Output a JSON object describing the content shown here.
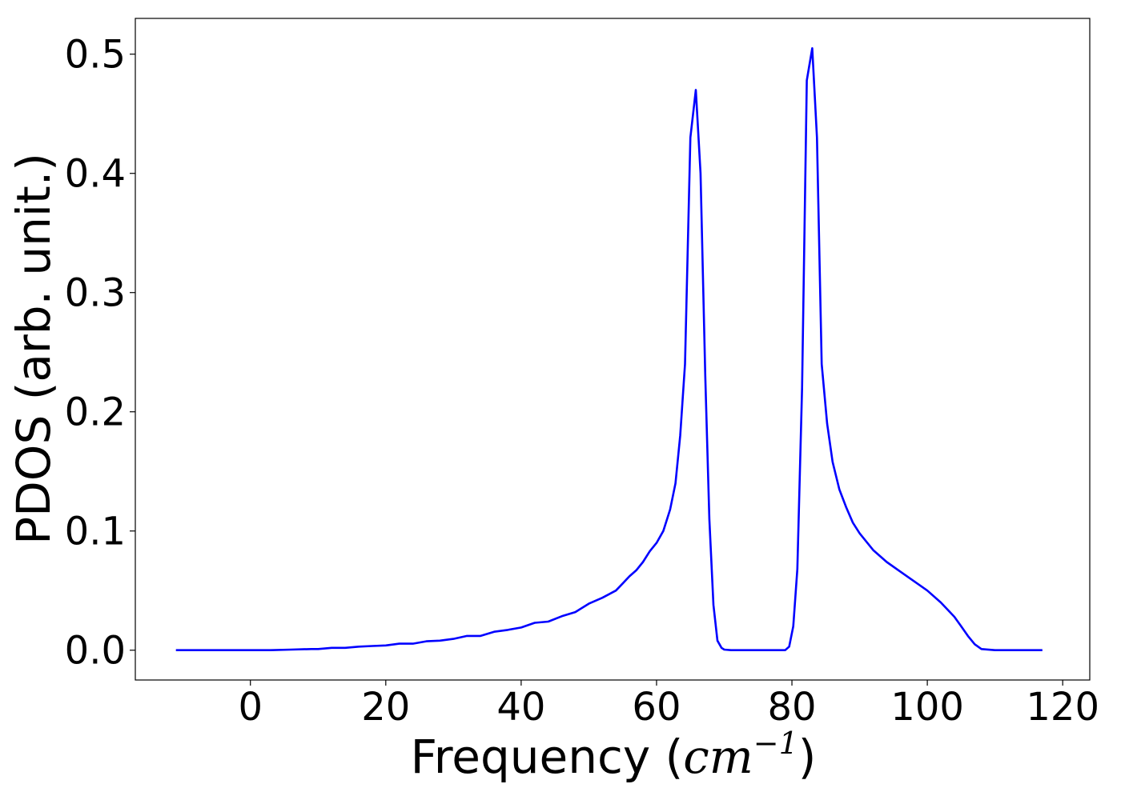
{
  "chart_data": {
    "type": "line",
    "title": "",
    "xlabel": "Frequency",
    "xlabel_math": "cm",
    "xlabel_exponent": "−1",
    "ylabel": "PDOS (arb. unit.)",
    "xlim": [
      -17,
      124
    ],
    "ylim": [
      -0.025,
      0.53
    ],
    "xticks": [
      0,
      20,
      40,
      60,
      80,
      100,
      120
    ],
    "xtick_labels": [
      "0",
      "20",
      "40",
      "60",
      "80",
      "100",
      "120"
    ],
    "yticks": [
      0.0,
      0.1,
      0.2,
      0.3,
      0.4,
      0.5
    ],
    "ytick_labels": [
      "0.0",
      "0.1",
      "0.2",
      "0.3",
      "0.4",
      "0.5"
    ],
    "grid": false,
    "legend": "none",
    "series": [
      {
        "color": "#0000ff",
        "x": [
          -11,
          -5,
          0,
          3,
          6,
          9,
          10,
          12,
          14,
          16,
          18,
          20,
          22,
          24,
          26,
          28,
          30,
          32,
          34,
          36,
          38,
          40,
          42,
          44,
          46,
          48,
          50,
          52,
          54,
          55,
          56,
          57,
          58,
          59,
          60,
          61,
          62,
          62.8,
          63.5,
          64.2,
          65,
          65.8,
          66.5,
          67.2,
          67.8,
          68.4,
          69,
          69.6,
          70,
          71,
          73,
          75,
          77,
          79,
          79.6,
          80.2,
          80.8,
          81.5,
          82.2,
          83,
          83.7,
          84.4,
          85.2,
          86,
          87,
          88,
          89,
          90,
          92,
          94,
          96,
          98,
          100,
          102,
          104,
          105,
          106,
          107,
          108,
          110,
          113,
          117
        ],
        "y": [
          0.0,
          0.0,
          0.0,
          0.0,
          0.0005,
          0.001,
          0.001,
          0.002,
          0.002,
          0.003,
          0.0035,
          0.004,
          0.0055,
          0.0055,
          0.0075,
          0.008,
          0.0095,
          0.012,
          0.012,
          0.0155,
          0.017,
          0.019,
          0.023,
          0.024,
          0.0285,
          0.032,
          0.039,
          0.044,
          0.05,
          0.056,
          0.062,
          0.067,
          0.074,
          0.083,
          0.09,
          0.1,
          0.118,
          0.14,
          0.18,
          0.24,
          0.43,
          0.47,
          0.4,
          0.23,
          0.11,
          0.038,
          0.008,
          0.002,
          0.0005,
          0.0,
          0.0,
          0.0,
          0.0,
          0.0,
          0.003,
          0.02,
          0.068,
          0.22,
          0.478,
          0.505,
          0.43,
          0.24,
          0.19,
          0.158,
          0.135,
          0.12,
          0.107,
          0.098,
          0.084,
          0.074,
          0.066,
          0.058,
          0.05,
          0.04,
          0.028,
          0.02,
          0.012,
          0.005,
          0.001,
          0.0,
          0.0,
          0.0
        ]
      }
    ]
  }
}
